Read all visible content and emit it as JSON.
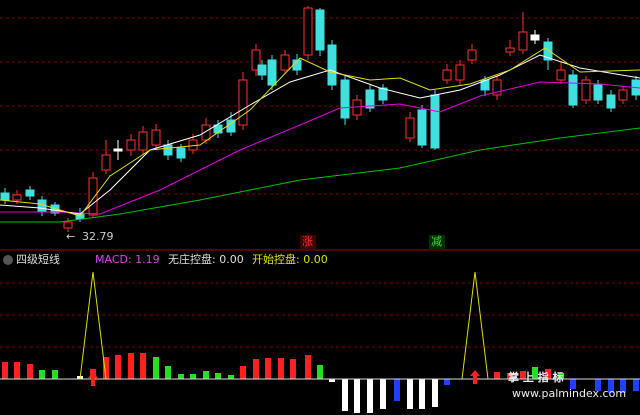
{
  "price_panel": {
    "low_marker": "32.79",
    "signal_up": "涨",
    "signal_down": "减"
  },
  "indicator_panel": {
    "name": "四级短线",
    "macd": "MACD: 1.19",
    "no_control": "无庄控盘: 0.00",
    "start_control": "开始控盘: 0.00"
  },
  "watermark": {
    "brand": "掌 上 指 标",
    "url": "www.palmindex.com"
  }
}
